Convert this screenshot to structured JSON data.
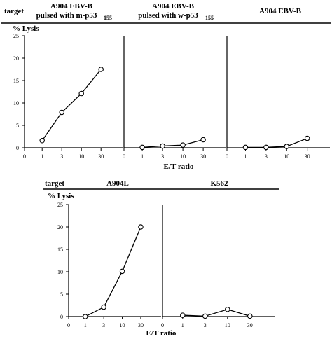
{
  "figure": {
    "row1": {
      "target_label": "target",
      "y_axis_label": "% Lysis",
      "x_axis_label": "E/T ratio",
      "panel1_title_line1": "A904 EBV-B",
      "panel1_title_line2": "pulsed with m-p53",
      "panel1_title_sub": "155",
      "panel2_title_line1": "A904 EBV-B",
      "panel2_title_line2": "pulsed with w-p53",
      "panel2_title_sub": "155",
      "panel3_title": "A904 EBV-B"
    },
    "row2": {
      "target_label": "target",
      "y_axis_label": "% Lysis",
      "x_axis_label": "E/T ratio",
      "panel1_title": "A904L",
      "panel2_title": "K562"
    }
  },
  "chart_data": [
    {
      "type": "line",
      "title": "A904 EBV-B pulsed with m-p53155",
      "xlabel": "E/T ratio",
      "ylabel": "% Lysis",
      "x_ticks": [
        "0",
        "1",
        "3",
        "10",
        "30"
      ],
      "x": [
        "1",
        "3",
        "10",
        "30"
      ],
      "y_ticks": [
        0,
        5,
        10,
        15,
        20,
        25
      ],
      "ylim": [
        0,
        25
      ],
      "values": [
        1.6,
        7.9,
        12.1,
        17.5
      ]
    },
    {
      "type": "line",
      "title": "A904 EBV-B pulsed with w-p53155",
      "xlabel": "E/T ratio",
      "ylabel": "% Lysis",
      "x_ticks": [
        "0",
        "1",
        "3",
        "10",
        "30"
      ],
      "x": [
        "1",
        "3",
        "10",
        "30"
      ],
      "ylim": [
        0,
        25
      ],
      "values": [
        0.1,
        0.4,
        0.6,
        1.8
      ]
    },
    {
      "type": "line",
      "title": "A904 EBV-B",
      "xlabel": "E/T ratio",
      "ylabel": "% Lysis",
      "x_ticks": [
        "0",
        "1",
        "3",
        "10",
        "30"
      ],
      "x": [
        "1",
        "3",
        "10",
        "30"
      ],
      "ylim": [
        0,
        25
      ],
      "values": [
        0.1,
        0.1,
        0.3,
        2.1
      ]
    },
    {
      "type": "line",
      "title": "A904L",
      "xlabel": "E/T ratio",
      "ylabel": "% Lysis",
      "x_ticks": [
        "0",
        "1",
        "3",
        "10",
        "30"
      ],
      "x": [
        "1",
        "3",
        "10",
        "30"
      ],
      "y_ticks": [
        0,
        5,
        10,
        15,
        20,
        25
      ],
      "ylim": [
        0,
        25
      ],
      "values": [
        0,
        2.1,
        10.1,
        20
      ]
    },
    {
      "type": "line",
      "title": "K562",
      "xlabel": "E/T ratio",
      "ylabel": "% Lysis",
      "x_ticks": [
        "0",
        "1",
        "3",
        "10",
        "30"
      ],
      "x": [
        "1",
        "3",
        "10",
        "30"
      ],
      "ylim": [
        0,
        25
      ],
      "values": [
        0.3,
        0.1,
        1.6,
        0.1
      ]
    }
  ]
}
